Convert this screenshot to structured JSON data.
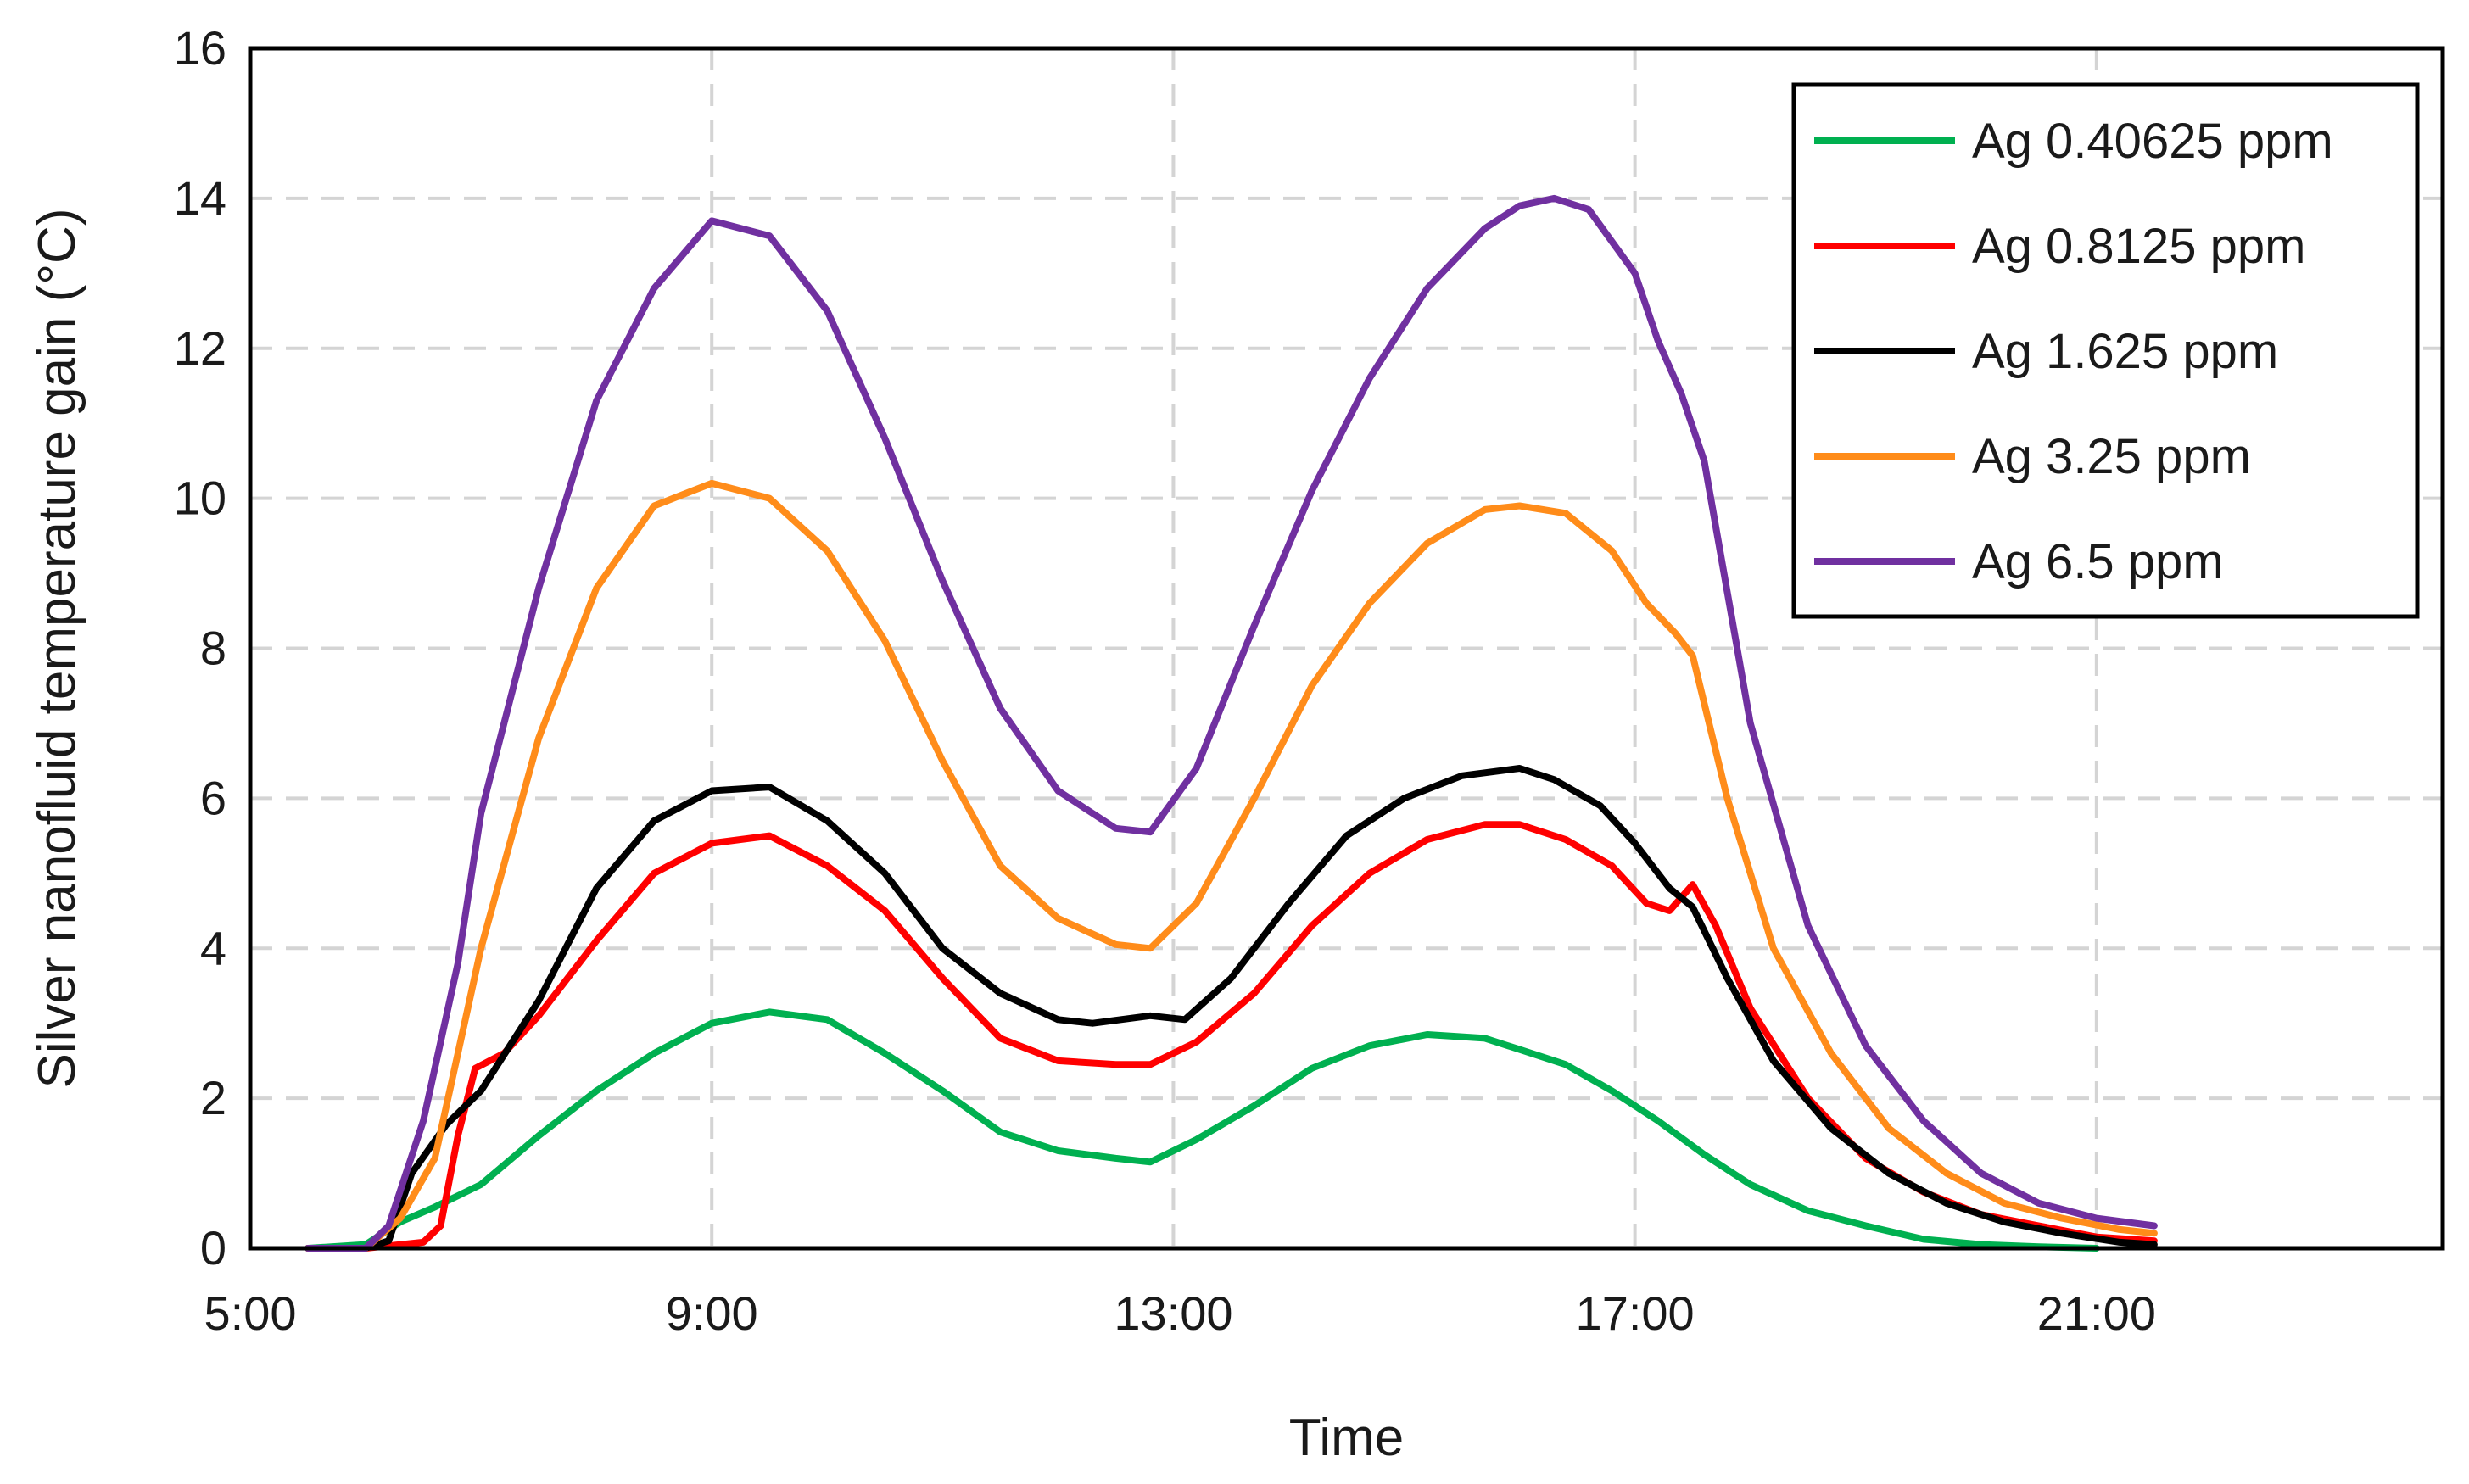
{
  "chart_data": {
    "type": "line",
    "title": "",
    "xlabel": "Time",
    "ylabel": "Silver nanofluid temperature gain (°C)",
    "xlim": [
      5,
      24
    ],
    "ylim": [
      0,
      16
    ],
    "x_ticks": [
      {
        "value": 5,
        "label": "5:00"
      },
      {
        "value": 9,
        "label": "9:00"
      },
      {
        "value": 13,
        "label": "13:00"
      },
      {
        "value": 17,
        "label": "17:00"
      },
      {
        "value": 21,
        "label": "21:00"
      }
    ],
    "y_ticks": [
      {
        "value": 0,
        "label": "0"
      },
      {
        "value": 2,
        "label": "2"
      },
      {
        "value": 4,
        "label": "4"
      },
      {
        "value": 6,
        "label": "6"
      },
      {
        "value": 8,
        "label": "8"
      },
      {
        "value": 10,
        "label": "10"
      },
      {
        "value": 12,
        "label": "12"
      },
      {
        "value": 14,
        "label": "14"
      },
      {
        "value": 16,
        "label": "16"
      }
    ],
    "grid": true,
    "legend_position": "top-right",
    "series": [
      {
        "name": "Ag 0.40625 ppm",
        "color": "#00b050",
        "x": [
          5.5,
          6.0,
          6.3,
          6.6,
          7.0,
          7.5,
          8.0,
          8.5,
          9.0,
          9.5,
          10.0,
          10.5,
          11.0,
          11.5,
          12.0,
          12.5,
          12.8,
          13.2,
          13.7,
          14.2,
          14.7,
          15.2,
          15.7,
          16.0,
          16.4,
          16.8,
          17.2,
          17.6,
          18.0,
          18.5,
          19.0,
          19.5,
          20.0,
          20.5,
          21.0
        ],
        "values": [
          0.0,
          0.05,
          0.35,
          0.55,
          0.85,
          1.5,
          2.1,
          2.6,
          3.0,
          3.15,
          3.05,
          2.6,
          2.1,
          1.55,
          1.3,
          1.2,
          1.15,
          1.45,
          1.9,
          2.4,
          2.7,
          2.85,
          2.8,
          2.65,
          2.45,
          2.1,
          1.7,
          1.25,
          0.85,
          0.5,
          0.3,
          0.12,
          0.05,
          0.02,
          0.0
        ]
      },
      {
        "name": "Ag 0.8125 ppm",
        "color": "#ff0000",
        "x": [
          5.5,
          6.0,
          6.5,
          6.65,
          6.8,
          6.95,
          7.2,
          7.5,
          8.0,
          8.5,
          9.0,
          9.5,
          10.0,
          10.5,
          11.0,
          11.5,
          12.0,
          12.5,
          12.8,
          13.2,
          13.7,
          14.2,
          14.7,
          15.2,
          15.7,
          16.0,
          16.4,
          16.8,
          17.1,
          17.3,
          17.5,
          17.7,
          18.0,
          18.5,
          19.0,
          19.5,
          20.0,
          20.5,
          21.0,
          21.5
        ],
        "values": [
          0.0,
          0.0,
          0.08,
          0.3,
          1.5,
          2.4,
          2.6,
          3.1,
          4.1,
          5.0,
          5.4,
          5.5,
          5.1,
          4.5,
          3.6,
          2.8,
          2.5,
          2.45,
          2.45,
          2.75,
          3.4,
          4.3,
          5.0,
          5.45,
          5.65,
          5.65,
          5.45,
          5.1,
          4.6,
          4.5,
          4.85,
          4.3,
          3.2,
          2.0,
          1.2,
          0.75,
          0.45,
          0.3,
          0.15,
          0.1
        ]
      },
      {
        "name": "Ag 1.625 ppm",
        "color": "#000000",
        "x": [
          5.5,
          6.0,
          6.2,
          6.4,
          6.7,
          7.0,
          7.5,
          8.0,
          8.5,
          9.0,
          9.5,
          10.0,
          10.5,
          11.0,
          11.5,
          12.0,
          12.3,
          12.8,
          13.1,
          13.5,
          14.0,
          14.5,
          15.0,
          15.5,
          16.0,
          16.3,
          16.7,
          17.0,
          17.3,
          17.5,
          17.8,
          18.2,
          18.7,
          19.2,
          19.7,
          20.2,
          20.7,
          21.2,
          21.5
        ],
        "values": [
          0.0,
          0.0,
          0.1,
          1.0,
          1.65,
          2.1,
          3.3,
          4.8,
          5.7,
          6.1,
          6.15,
          5.7,
          5.0,
          4.0,
          3.4,
          3.05,
          3.0,
          3.1,
          3.05,
          3.6,
          4.6,
          5.5,
          6.0,
          6.3,
          6.4,
          6.25,
          5.9,
          5.4,
          4.8,
          4.55,
          3.6,
          2.5,
          1.6,
          1.0,
          0.6,
          0.35,
          0.2,
          0.08,
          0.05
        ]
      },
      {
        "name": "Ag 3.25 ppm",
        "color": "#ff8c1a",
        "x": [
          5.5,
          6.0,
          6.3,
          6.6,
          7.0,
          7.5,
          8.0,
          8.5,
          9.0,
          9.5,
          10.0,
          10.5,
          11.0,
          11.5,
          12.0,
          12.5,
          12.8,
          13.2,
          13.7,
          14.2,
          14.7,
          15.2,
          15.7,
          16.0,
          16.4,
          16.8,
          17.1,
          17.35,
          17.5,
          17.8,
          18.2,
          18.7,
          19.2,
          19.7,
          20.2,
          20.7,
          21.2,
          21.5
        ],
        "values": [
          0.0,
          0.0,
          0.4,
          1.2,
          4.0,
          6.8,
          8.8,
          9.9,
          10.2,
          10.0,
          9.3,
          8.1,
          6.5,
          5.1,
          4.4,
          4.05,
          4.0,
          4.6,
          6.0,
          7.5,
          8.6,
          9.4,
          9.85,
          9.9,
          9.8,
          9.3,
          8.6,
          8.2,
          7.9,
          6.0,
          4.0,
          2.6,
          1.6,
          1.0,
          0.6,
          0.4,
          0.25,
          0.2
        ]
      },
      {
        "name": "Ag 6.5 ppm",
        "color": "#7030a0",
        "x": [
          5.5,
          6.0,
          6.2,
          6.5,
          6.8,
          7.0,
          7.5,
          8.0,
          8.5,
          9.0,
          9.5,
          10.0,
          10.5,
          11.0,
          11.5,
          12.0,
          12.5,
          12.8,
          13.2,
          13.7,
          14.2,
          14.7,
          15.2,
          15.7,
          16.0,
          16.3,
          16.6,
          17.0,
          17.2,
          17.4,
          17.6,
          18.0,
          18.5,
          19.0,
          19.5,
          20.0,
          20.5,
          21.0,
          21.5
        ],
        "values": [
          0.0,
          0.0,
          0.3,
          1.7,
          3.8,
          5.8,
          8.8,
          11.3,
          12.8,
          13.7,
          13.5,
          12.5,
          10.8,
          8.9,
          7.2,
          6.1,
          5.6,
          5.55,
          6.4,
          8.3,
          10.1,
          11.6,
          12.8,
          13.6,
          13.9,
          14.0,
          13.85,
          13.0,
          12.1,
          11.4,
          10.5,
          7.0,
          4.3,
          2.7,
          1.7,
          1.0,
          0.6,
          0.4,
          0.3
        ]
      }
    ]
  }
}
